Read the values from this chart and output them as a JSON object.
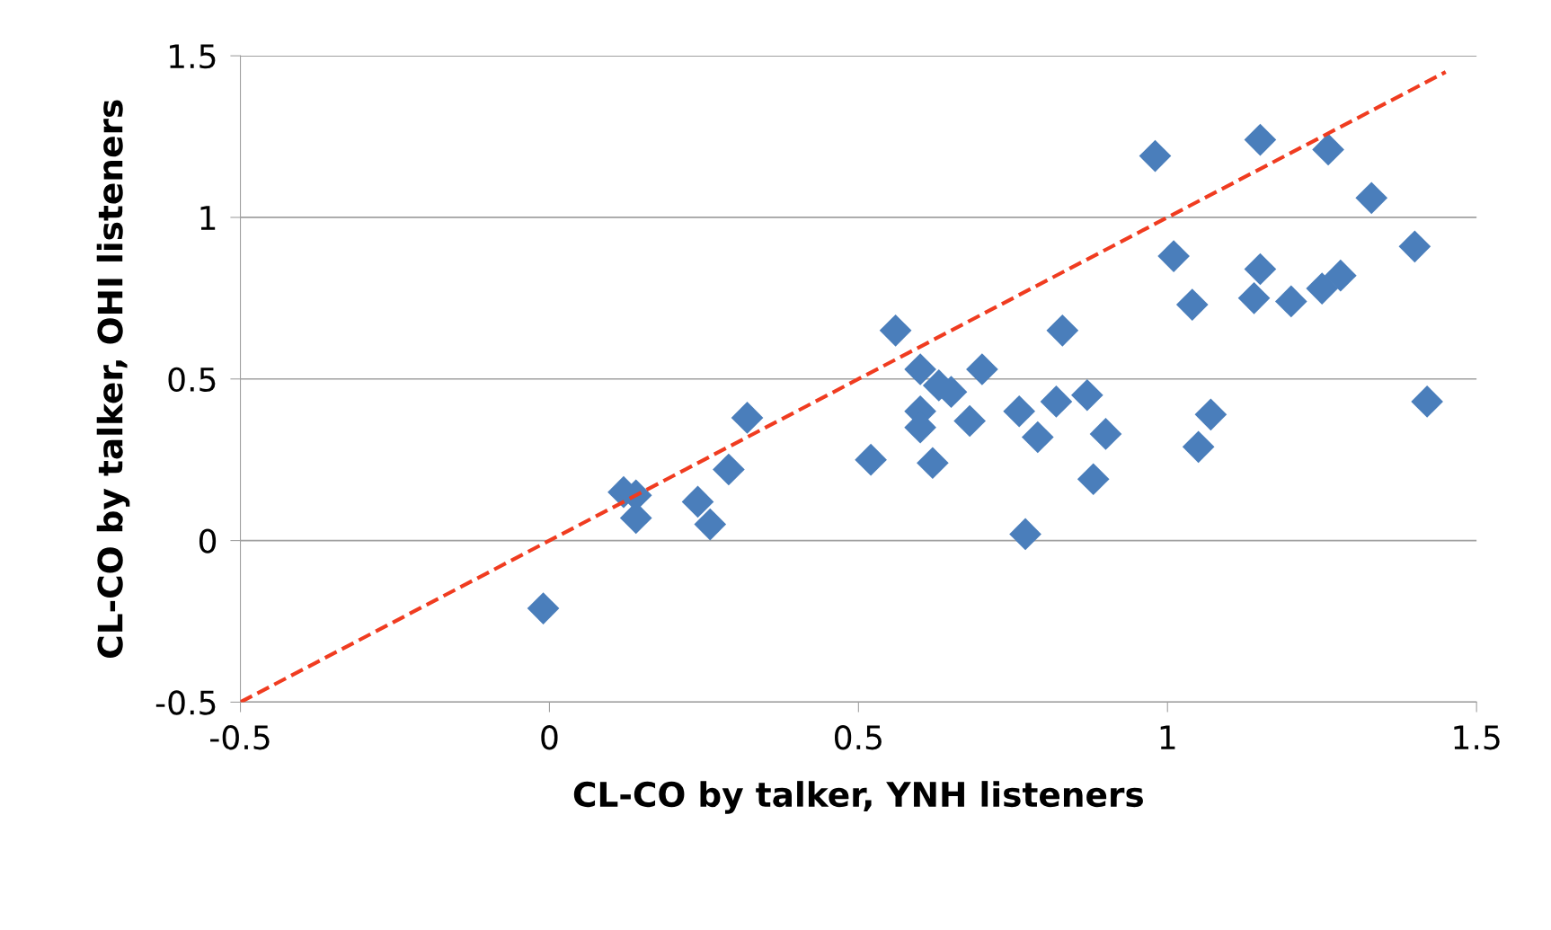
{
  "chart_data": {
    "type": "scatter",
    "xlabel": "CL-CO by talker, YNH listeners",
    "ylabel": "CL-CO by talker, OHI listeners",
    "xlim": [
      -0.5,
      1.5
    ],
    "xticks": [
      -0.5,
      0,
      0.5,
      1,
      1.5
    ],
    "ylim": [
      -0.5,
      1.5
    ],
    "yticks": [
      -0.5,
      0,
      0.5,
      1,
      1.5
    ],
    "grid": "y",
    "legend": false,
    "series": [
      {
        "color": "#4a7ebb",
        "marker": "diamond",
        "x": [
          -0.01,
          0.12,
          0.14,
          0.14,
          0.24,
          0.26,
          0.29,
          0.32,
          0.52,
          0.56,
          0.6,
          0.6,
          0.6,
          0.63,
          0.65,
          0.62,
          0.68,
          0.7,
          0.76,
          0.77,
          0.79,
          0.82,
          0.83,
          0.87,
          0.88,
          0.9,
          0.98,
          1.01,
          1.04,
          1.05,
          1.07,
          1.14,
          1.15,
          1.15,
          1.2,
          1.25,
          1.26,
          1.28,
          1.33,
          1.4,
          1.42
        ],
        "values": [
          -0.21,
          0.15,
          0.14,
          0.07,
          0.12,
          0.05,
          0.22,
          0.38,
          0.25,
          0.65,
          0.53,
          0.4,
          0.35,
          0.48,
          0.46,
          0.24,
          0.37,
          0.53,
          0.4,
          0.02,
          0.32,
          0.43,
          0.65,
          0.45,
          0.19,
          0.33,
          1.19,
          0.88,
          0.73,
          0.29,
          0.39,
          0.75,
          0.84,
          1.24,
          0.74,
          0.78,
          1.21,
          0.82,
          1.06,
          0.91,
          0.43
        ]
      },
      {
        "type": "line",
        "color": "#f03c20",
        "line_style": "dashed",
        "marker": "none",
        "x": [
          -0.5,
          1.45
        ],
        "values": [
          -0.5,
          1.45
        ]
      }
    ]
  }
}
